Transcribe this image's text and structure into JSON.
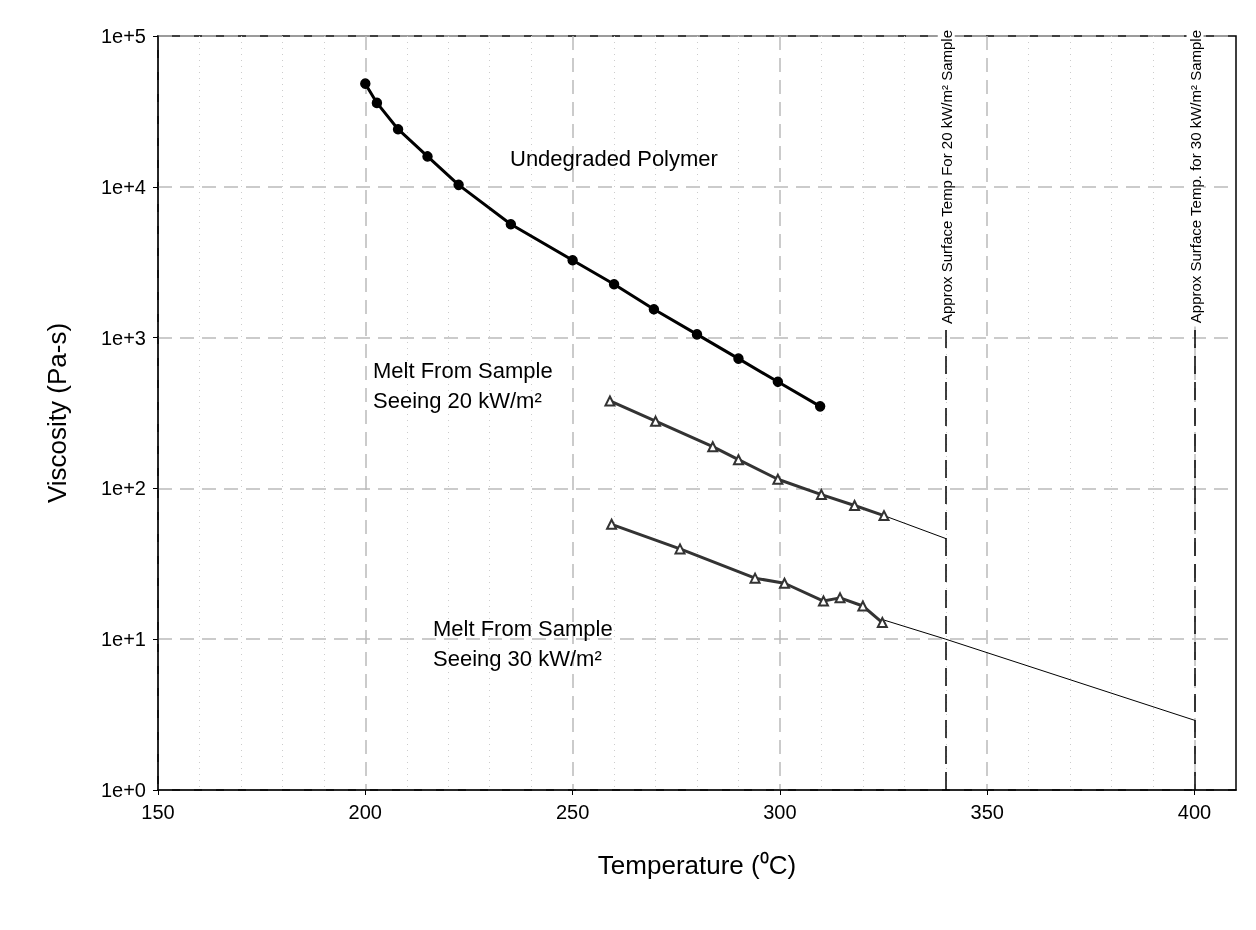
{
  "chart_data": {
    "type": "line",
    "xlabel": "Temperature (⁰C)",
    "ylabel": "Viscosity (Pa-s)",
    "xlim": [
      150,
      410
    ],
    "xticks": [
      150,
      200,
      250,
      300,
      350,
      400
    ],
    "ylim": [
      1,
      100000
    ],
    "yticks": [
      {
        "value": 1,
        "label": "1e+0"
      },
      {
        "value": 10,
        "label": "1e+1"
      },
      {
        "value": 100,
        "label": "1e+2"
      },
      {
        "value": 1000,
        "label": "1e+3"
      },
      {
        "value": 10000,
        "label": "1e+4"
      },
      {
        "value": 100000,
        "label": "1e+5"
      }
    ],
    "log": "y",
    "grid": true,
    "series": [
      {
        "color": "#000000",
        "marker": "circle",
        "line_style": "solid",
        "x": [
          200,
          202.8,
          207.9,
          215,
          222.5,
          235.1,
          250,
          260,
          269.6,
          280,
          290,
          299.5,
          309.7
        ],
        "values": [
          48300,
          36000,
          24100,
          15900,
          10300,
          5650,
          3260,
          2260,
          1540,
          1050,
          725,
          509,
          350
        ]
      },
      {
        "color": "#333333",
        "marker": "triangle",
        "line_style": "solid",
        "x": [
          259,
          270,
          283.8,
          290,
          299.5,
          310,
          318,
          325.1
        ],
        "values": [
          380,
          279,
          189,
          155,
          115,
          91,
          77,
          66
        ]
      },
      {
        "color": "#333333",
        "marker": "triangle",
        "line_style": "solid",
        "x": [
          259.4,
          275.9,
          294,
          301.1,
          310.5,
          314.5,
          320,
          324.7
        ],
        "values": [
          57.8,
          39.7,
          25.4,
          23.5,
          17.9,
          18.8,
          16.6,
          12.9
        ]
      },
      {
        "color": "#000000",
        "marker": "none",
        "line_style": "solid",
        "x": [
          325.1,
          340
        ],
        "values": [
          66,
          46.5
        ]
      },
      {
        "color": "#000000",
        "marker": "none",
        "line_style": "solid",
        "x": [
          324.7,
          340,
          400
        ],
        "values": [
          13.5,
          10,
          2.9
        ]
      }
    ],
    "ref_lines": [
      {
        "axis": "x",
        "value": 340,
        "label": "Approx Surface Temp For 20 kW/m² Sample",
        "color": "#000000",
        "line_style": "dashed"
      },
      {
        "axis": "x",
        "value": 400,
        "label": "Approx Surface Temp. for 30 kW/m² Sample",
        "color": "#000000",
        "line_style": "dashed"
      }
    ],
    "annotations": [
      "Undegraded Polymer",
      "Melt From Sample\nSeeing 20 kW/m²",
      "Melt From Sample\nSeeing 30 kW/m²"
    ]
  }
}
